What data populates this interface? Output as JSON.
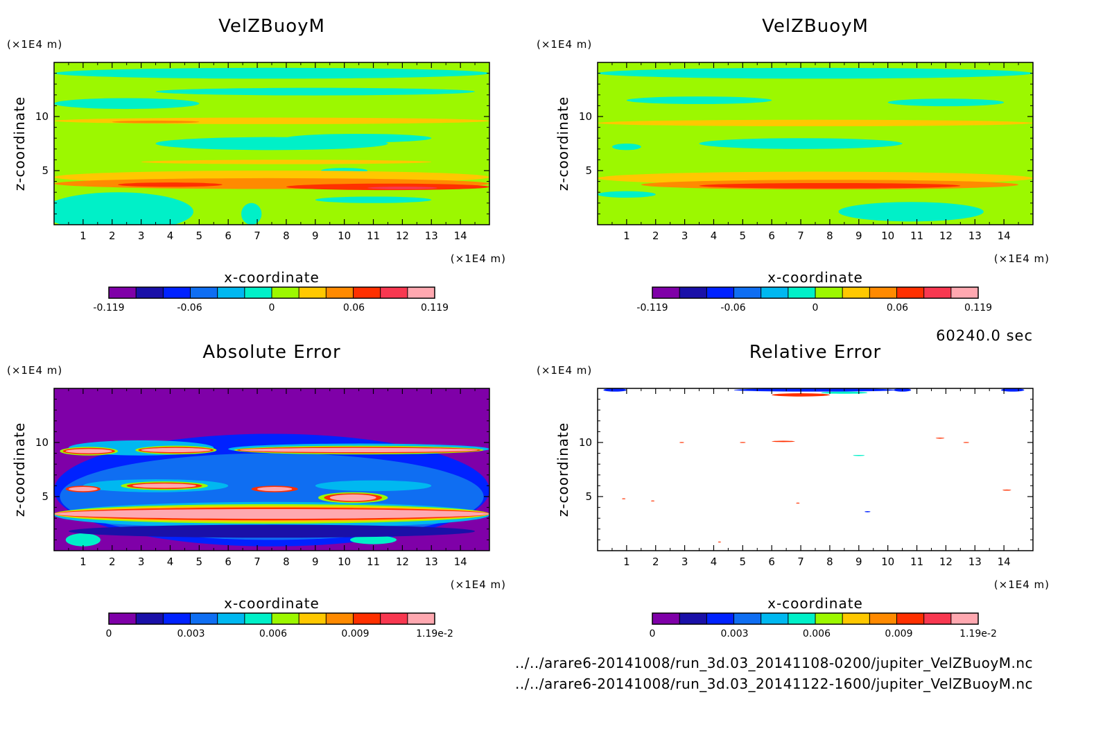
{
  "palette": [
    "#7f00a8",
    "#1a10a8",
    "#0022ff",
    "#0f6ef2",
    "#00b8f0",
    "#00f0c8",
    "#9cf800",
    "#ffc800",
    "#ff8a00",
    "#ff3000",
    "#f83850",
    "#ffa8b0"
  ],
  "time_label": "60240.0 sec",
  "files": [
    "../../arare6-20141008/run_3d.03_20141108-0200/jupiter_VelZBuoyM.nc",
    "../../arare6-20141008/run_3d.03_20141122-1600/jupiter_VelZBuoyM.nc"
  ],
  "chart_data": [
    {
      "type": "heatmap",
      "title": "VelZBuoyM",
      "xlabel": "x-coordinate",
      "ylabel": "z-coordinate",
      "x_unit": "(×1E4 m)",
      "y_unit": "(×1E4 m)",
      "x_ticks": [
        "1",
        "2",
        "3",
        "4",
        "5",
        "6",
        "7",
        "8",
        "9",
        "10",
        "11",
        "12",
        "13",
        "14"
      ],
      "y_ticks": [
        "5",
        "10"
      ],
      "xlim": [
        0,
        15
      ],
      "ylim": [
        0,
        15
      ],
      "colorbar_levels": [
        -0.119,
        -0.099,
        -0.079,
        -0.06,
        -0.04,
        -0.02,
        0,
        0.02,
        0.04,
        0.06,
        0.079,
        0.099,
        0.119
      ],
      "colorbar_labels": [
        "-0.119",
        "-0.06",
        "0",
        "0.06",
        "0.119"
      ],
      "colorbar_label_values": [
        -0.119,
        -0.06,
        0,
        0.06,
        0.119
      ],
      "background_level": 6,
      "regions": [
        {
          "level": 5,
          "cx": 7.5,
          "cy": 14.0,
          "rx": 7.5,
          "ry": 0.5
        },
        {
          "level": 5,
          "cx": 9.0,
          "cy": 12.3,
          "rx": 5.5,
          "ry": 0.35
        },
        {
          "level": 5,
          "cx": 2.5,
          "cy": 11.2,
          "rx": 2.5,
          "ry": 0.5
        },
        {
          "level": 7,
          "cx": 7.5,
          "cy": 9.6,
          "rx": 7.5,
          "ry": 0.3
        },
        {
          "level": 8,
          "cx": 3.5,
          "cy": 9.5,
          "rx": 1.5,
          "ry": 0.12
        },
        {
          "level": 5,
          "cx": 7.5,
          "cy": 7.5,
          "rx": 4.0,
          "ry": 0.6
        },
        {
          "level": 5,
          "cx": 10.5,
          "cy": 8.0,
          "rx": 2.5,
          "ry": 0.4
        },
        {
          "level": 7,
          "cx": 8.0,
          "cy": 5.8,
          "rx": 5.0,
          "ry": 0.2
        },
        {
          "level": 5,
          "cx": 10.0,
          "cy": 5.0,
          "rx": 0.8,
          "ry": 0.25
        },
        {
          "level": 7,
          "cx": 7.5,
          "cy": 4.4,
          "rx": 7.5,
          "ry": 0.6
        },
        {
          "level": 8,
          "cx": 7.5,
          "cy": 3.8,
          "rx": 7.5,
          "ry": 0.5
        },
        {
          "level": 9,
          "cx": 11.5,
          "cy": 3.5,
          "rx": 3.5,
          "ry": 0.3
        },
        {
          "level": 9,
          "cx": 4.0,
          "cy": 3.7,
          "rx": 1.8,
          "ry": 0.2
        },
        {
          "level": 10,
          "cx": 12.0,
          "cy": 3.4,
          "rx": 1.2,
          "ry": 0.12
        },
        {
          "level": 5,
          "cx": 2.2,
          "cy": 1.2,
          "rx": 2.6,
          "ry": 1.8
        },
        {
          "level": 5,
          "cx": 11.0,
          "cy": 2.3,
          "rx": 2.0,
          "ry": 0.3
        },
        {
          "level": 5,
          "cx": 6.8,
          "cy": 1.0,
          "rx": 0.35,
          "ry": 1.0
        }
      ]
    },
    {
      "type": "heatmap",
      "title": "VelZBuoyM",
      "xlabel": "x-coordinate",
      "ylabel": "z-coordinate",
      "x_unit": "(×1E4 m)",
      "y_unit": "(×1E4 m)",
      "x_ticks": [
        "1",
        "2",
        "3",
        "4",
        "5",
        "6",
        "7",
        "8",
        "9",
        "10",
        "11",
        "12",
        "13",
        "14"
      ],
      "y_ticks": [
        "5",
        "10"
      ],
      "xlim": [
        0,
        15
      ],
      "ylim": [
        0,
        15
      ],
      "colorbar_levels": [
        -0.119,
        -0.099,
        -0.079,
        -0.06,
        -0.04,
        -0.02,
        0,
        0.02,
        0.04,
        0.06,
        0.079,
        0.099,
        0.119
      ],
      "colorbar_labels": [
        "-0.119",
        "-0.06",
        "0",
        "0.06",
        "0.119"
      ],
      "colorbar_label_values": [
        -0.119,
        -0.06,
        0,
        0.06,
        0.119
      ],
      "background_level": 6,
      "regions": [
        {
          "level": 5,
          "cx": 7.5,
          "cy": 14.0,
          "rx": 7.5,
          "ry": 0.5
        },
        {
          "level": 5,
          "cx": 3.5,
          "cy": 11.5,
          "rx": 2.5,
          "ry": 0.35
        },
        {
          "level": 5,
          "cx": 12.0,
          "cy": 11.3,
          "rx": 2.0,
          "ry": 0.35
        },
        {
          "level": 7,
          "cx": 7.5,
          "cy": 9.4,
          "rx": 7.5,
          "ry": 0.3
        },
        {
          "level": 5,
          "cx": 7.0,
          "cy": 7.5,
          "rx": 3.5,
          "ry": 0.5
        },
        {
          "level": 5,
          "cx": 1.0,
          "cy": 7.2,
          "rx": 0.5,
          "ry": 0.3
        },
        {
          "level": 7,
          "cx": 7.5,
          "cy": 4.3,
          "rx": 7.5,
          "ry": 0.6
        },
        {
          "level": 8,
          "cx": 8.0,
          "cy": 3.7,
          "rx": 6.5,
          "ry": 0.45
        },
        {
          "level": 9,
          "cx": 8.0,
          "cy": 3.6,
          "rx": 4.5,
          "ry": 0.25
        },
        {
          "level": 5,
          "cx": 1.0,
          "cy": 2.8,
          "rx": 1.0,
          "ry": 0.3
        },
        {
          "level": 5,
          "cx": 10.8,
          "cy": 1.2,
          "rx": 2.5,
          "ry": 0.9
        }
      ]
    },
    {
      "type": "heatmap",
      "title": "Absolute Error",
      "xlabel": "x-coordinate",
      "ylabel": "z-coordinate",
      "x_unit": "(×1E4 m)",
      "y_unit": "(×1E4 m)",
      "x_ticks": [
        "1",
        "2",
        "3",
        "4",
        "5",
        "6",
        "7",
        "8",
        "9",
        "10",
        "11",
        "12",
        "13",
        "14"
      ],
      "y_ticks": [
        "5",
        "10"
      ],
      "xlim": [
        0,
        15
      ],
      "ylim": [
        0,
        15
      ],
      "colorbar_levels": [
        0,
        0.001,
        0.002,
        0.003,
        0.004,
        0.005,
        0.006,
        0.007,
        0.008,
        0.009,
        0.01,
        0.011,
        0.0119
      ],
      "colorbar_labels": [
        "0",
        "0.003",
        "0.006",
        "0.009",
        "1.19e-2"
      ],
      "colorbar_label_values": [
        0,
        0.003,
        0.006,
        0.009,
        0.0119
      ],
      "background_level": 0,
      "regions": [
        {
          "level": 2,
          "cx": 7.5,
          "cy": 5.6,
          "rx": 7.5,
          "ry": 5.2
        },
        {
          "level": 3,
          "cx": 7.5,
          "cy": 5.0,
          "rx": 7.3,
          "ry": 4.0
        },
        {
          "level": 4,
          "cx": 3.0,
          "cy": 9.5,
          "rx": 2.5,
          "ry": 0.7
        },
        {
          "level": 4,
          "cx": 10.5,
          "cy": 9.4,
          "rx": 4.5,
          "ry": 0.5
        },
        {
          "level": 4,
          "cx": 7.5,
          "cy": 3.3,
          "rx": 7.5,
          "ry": 1.2
        },
        {
          "level": 4,
          "cx": 3.5,
          "cy": 6.0,
          "rx": 2.5,
          "ry": 0.6
        },
        {
          "level": 4,
          "cx": 11.0,
          "cy": 6.0,
          "rx": 2.0,
          "ry": 0.5
        },
        {
          "level": 6,
          "cx": 7.5,
          "cy": 3.4,
          "rx": 7.5,
          "ry": 0.9
        },
        {
          "level": 7,
          "cx": 7.5,
          "cy": 3.4,
          "rx": 7.5,
          "ry": 0.75
        },
        {
          "level": 9,
          "cx": 7.5,
          "cy": 3.4,
          "rx": 7.5,
          "ry": 0.6
        },
        {
          "level": 11,
          "cx": 7.5,
          "cy": 3.4,
          "rx": 7.5,
          "ry": 0.45
        },
        {
          "level": 6,
          "cx": 10.5,
          "cy": 9.3,
          "rx": 4.3,
          "ry": 0.4
        },
        {
          "level": 9,
          "cx": 10.5,
          "cy": 9.3,
          "rx": 4.2,
          "ry": 0.3
        },
        {
          "level": 11,
          "cx": 10.5,
          "cy": 9.3,
          "rx": 4.1,
          "ry": 0.2
        },
        {
          "level": 6,
          "cx": 1.2,
          "cy": 9.2,
          "rx": 1.0,
          "ry": 0.4
        },
        {
          "level": 9,
          "cx": 1.2,
          "cy": 9.2,
          "rx": 0.9,
          "ry": 0.3
        },
        {
          "level": 11,
          "cx": 1.2,
          "cy": 9.2,
          "rx": 0.8,
          "ry": 0.2
        },
        {
          "level": 6,
          "cx": 4.2,
          "cy": 9.3,
          "rx": 1.4,
          "ry": 0.4
        },
        {
          "level": 9,
          "cx": 4.2,
          "cy": 9.3,
          "rx": 1.3,
          "ry": 0.3
        },
        {
          "level": 11,
          "cx": 4.2,
          "cy": 9.3,
          "rx": 1.2,
          "ry": 0.2
        },
        {
          "level": 6,
          "cx": 3.8,
          "cy": 6.0,
          "rx": 1.5,
          "ry": 0.4
        },
        {
          "level": 9,
          "cx": 3.8,
          "cy": 6.0,
          "rx": 1.3,
          "ry": 0.3
        },
        {
          "level": 11,
          "cx": 3.8,
          "cy": 6.0,
          "rx": 1.1,
          "ry": 0.2
        },
        {
          "level": 6,
          "cx": 10.3,
          "cy": 4.9,
          "rx": 1.2,
          "ry": 0.5
        },
        {
          "level": 9,
          "cx": 10.3,
          "cy": 4.9,
          "rx": 1.0,
          "ry": 0.4
        },
        {
          "level": 11,
          "cx": 10.3,
          "cy": 4.9,
          "rx": 0.8,
          "ry": 0.3
        },
        {
          "level": 9,
          "cx": 1.0,
          "cy": 5.7,
          "rx": 0.6,
          "ry": 0.3
        },
        {
          "level": 11,
          "cx": 1.0,
          "cy": 5.7,
          "rx": 0.5,
          "ry": 0.2
        },
        {
          "level": 9,
          "cx": 7.6,
          "cy": 5.7,
          "rx": 0.8,
          "ry": 0.3
        },
        {
          "level": 11,
          "cx": 7.6,
          "cy": 5.7,
          "rx": 0.6,
          "ry": 0.2
        },
        {
          "level": 5,
          "cx": 1.0,
          "cy": 1.0,
          "rx": 0.6,
          "ry": 0.6
        },
        {
          "level": 5,
          "cx": 11.0,
          "cy": 1.0,
          "rx": 0.8,
          "ry": 0.4
        },
        {
          "level": 1,
          "cx": 7.5,
          "cy": 1.8,
          "rx": 7.0,
          "ry": 0.6
        }
      ]
    },
    {
      "type": "heatmap",
      "title": "Relative Error",
      "xlabel": "x-coordinate",
      "ylabel": "z-coordinate",
      "x_unit": "(×1E4 m)",
      "y_unit": "(×1E4 m)",
      "x_ticks": [
        "1",
        "2",
        "3",
        "4",
        "5",
        "6",
        "7",
        "8",
        "9",
        "10",
        "11",
        "12",
        "13",
        "14"
      ],
      "y_ticks": [
        "5",
        "10"
      ],
      "xlim": [
        0,
        15
      ],
      "ylim": [
        0,
        15
      ],
      "colorbar_levels": [
        0,
        0.001,
        0.002,
        0.003,
        0.004,
        0.005,
        0.006,
        0.007,
        0.008,
        0.009,
        0.01,
        0.011,
        0.0119
      ],
      "colorbar_labels": [
        "0",
        "0.003",
        "0.006",
        "0.009",
        "1.19e-2"
      ],
      "colorbar_label_values": [
        0,
        0.003,
        0.006,
        0.009,
        0.0119
      ],
      "background_level": -1,
      "regions": [
        {
          "level": 2,
          "cx": 7.5,
          "cy": 14.85,
          "rx": 2.8,
          "ry": 0.15
        },
        {
          "level": 9,
          "cx": 7.0,
          "cy": 14.4,
          "rx": 1.0,
          "ry": 0.15
        },
        {
          "level": 5,
          "cx": 8.5,
          "cy": 14.6,
          "rx": 0.8,
          "ry": 0.1
        },
        {
          "level": 2,
          "cx": 0.6,
          "cy": 14.85,
          "rx": 0.4,
          "ry": 0.15
        },
        {
          "level": 2,
          "cx": 10.5,
          "cy": 14.85,
          "rx": 0.3,
          "ry": 0.15
        },
        {
          "level": 2,
          "cx": 14.3,
          "cy": 14.85,
          "rx": 0.4,
          "ry": 0.15
        },
        {
          "level": 9,
          "cx": 2.9,
          "cy": 10.0,
          "rx": 0.08,
          "ry": 0.04
        },
        {
          "level": 9,
          "cx": 5.0,
          "cy": 10.0,
          "rx": 0.1,
          "ry": 0.04
        },
        {
          "level": 9,
          "cx": 6.4,
          "cy": 10.1,
          "rx": 0.4,
          "ry": 0.06
        },
        {
          "level": 5,
          "cx": 9.0,
          "cy": 8.8,
          "rx": 0.2,
          "ry": 0.05
        },
        {
          "level": 9,
          "cx": 11.8,
          "cy": 10.4,
          "rx": 0.15,
          "ry": 0.05
        },
        {
          "level": 9,
          "cx": 12.7,
          "cy": 10.0,
          "rx": 0.1,
          "ry": 0.04
        },
        {
          "level": 9,
          "cx": 0.9,
          "cy": 4.8,
          "rx": 0.06,
          "ry": 0.04
        },
        {
          "level": 9,
          "cx": 1.9,
          "cy": 4.6,
          "rx": 0.06,
          "ry": 0.04
        },
        {
          "level": 9,
          "cx": 6.9,
          "cy": 4.4,
          "rx": 0.06,
          "ry": 0.04
        },
        {
          "level": 2,
          "cx": 9.3,
          "cy": 3.6,
          "rx": 0.1,
          "ry": 0.05
        },
        {
          "level": 9,
          "cx": 14.1,
          "cy": 5.6,
          "rx": 0.15,
          "ry": 0.05
        },
        {
          "level": 9,
          "cx": 4.2,
          "cy": 0.8,
          "rx": 0.05,
          "ry": 0.04
        }
      ]
    }
  ]
}
